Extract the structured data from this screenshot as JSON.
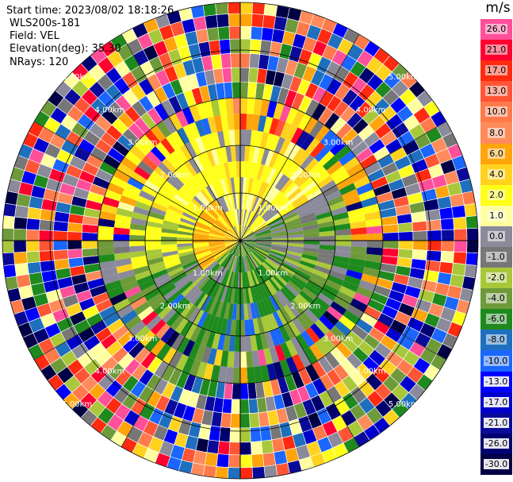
{
  "header": {
    "start_time": "Start time: 2023/08/02 18:18:26",
    "instrument": "WLS200s-181",
    "field": "Field: VEL",
    "elevation": "Elevation(deg): 35.30",
    "nrays": "NRays: 120"
  },
  "colorbar": {
    "unit": "m/s",
    "levels": [
      {
        "label": "26.0",
        "color": "#ff4f9a"
      },
      {
        "label": "21.0",
        "color": "#ff0030"
      },
      {
        "label": "17.0",
        "color": "#ff2a10"
      },
      {
        "label": "13.0",
        "color": "#ff5535"
      },
      {
        "label": "10.0",
        "color": "#ff7a4a"
      },
      {
        "label": "8.0",
        "color": "#ff8a5a"
      },
      {
        "label": "6.0",
        "color": "#ffa40a"
      },
      {
        "label": "4.0",
        "color": "#ffd21e"
      },
      {
        "label": "2.0",
        "color": "#ffff1a"
      },
      {
        "label": "1.0",
        "color": "#ffffa0"
      },
      {
        "label": "0.0",
        "color": "#8a8a9a"
      },
      {
        "label": "-1.0",
        "color": "#777777"
      },
      {
        "label": "-2.0",
        "color": "#a8c83a"
      },
      {
        "label": "-4.0",
        "color": "#6e9a3a"
      },
      {
        "label": "-6.0",
        "color": "#1e8a1e"
      },
      {
        "label": "-8.0",
        "color": "#1f6fbf"
      },
      {
        "label": "-10.0",
        "color": "#1a66ff"
      },
      {
        "label": "-13.0",
        "color": "#0000ff"
      },
      {
        "label": "-17.0",
        "color": "#0000cc"
      },
      {
        "label": "-21.0",
        "color": "#0a0a9a"
      },
      {
        "label": "-26.0",
        "color": "#00006e"
      },
      {
        "label": "-30.0",
        "color": "#000044"
      }
    ]
  },
  "range_labels": {
    "r1": "1.00km",
    "r2": "2.00km",
    "r3": "3.00km",
    "r4": "4.00km",
    "r5": "5.00km"
  }
}
